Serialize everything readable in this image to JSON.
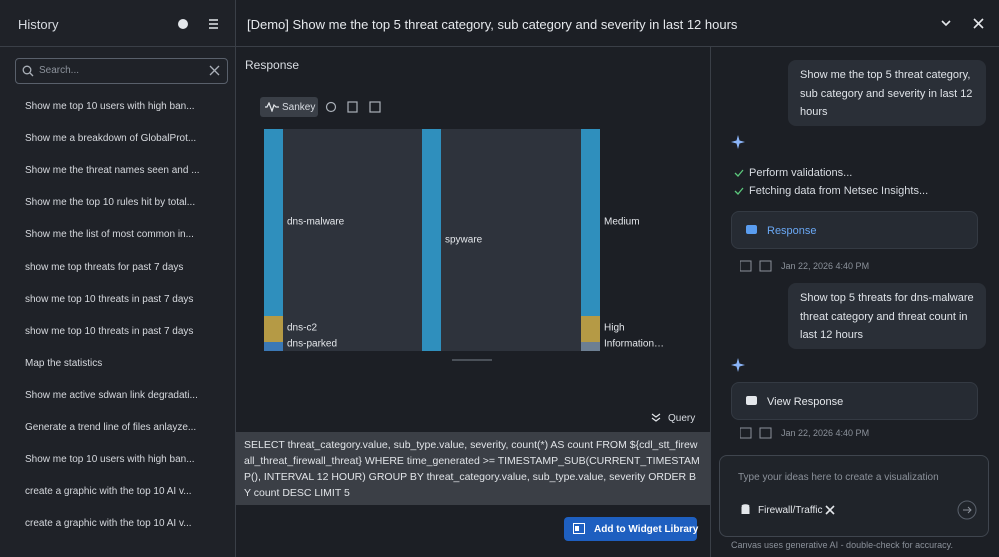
{
  "sidebar": {
    "title": "History",
    "search_placeholder": "Search...",
    "items": [
      "Show me top 10 users with high ban...",
      "Show me a breakdown of GlobalProt...",
      "Show me the threat names seen and ...",
      "Show me the top 10 rules hit by total...",
      "Show me the list of most common in...",
      "show me top threats for past 7 days",
      "show me top 10 threats in past 7 days",
      "show me top 10 threats in past 7 days",
      "Map the statistics",
      "Show me active sdwan link degradati...",
      "Generate a trend line of files anlayze...",
      "Show me top 10 users with high ban...",
      "create a graphic with the top 10 AI v...",
      "create a graphic with the top 10 AI v..."
    ]
  },
  "header": {
    "title": "[Demo] Show me the top 5 threat category, sub category and severity in last 12 hours"
  },
  "response": {
    "title": "Response",
    "tab": "Sankey",
    "sankey": {
      "left": [
        "dns-malware",
        "dns-c2",
        "dns-parked"
      ],
      "middle": [
        "spyware"
      ],
      "right": [
        "Medium",
        "High",
        "Information…"
      ]
    },
    "query_toggle": "Query",
    "sql": "SELECT threat_category.value, sub_type.value, severity, count(*) AS count FROM ${cdl_stt_firewall_threat_firewall_threat} WHERE time_generated >= TIMESTAMP_SUB(CURRENT_TIMESTAMP(), INTERVAL 12 HOUR) GROUP BY threat_category.value, sub_type.value, severity ORDER BY count DESC LIMIT 5",
    "button": "Add to Widget Library"
  },
  "chat": {
    "user_1": "Show me the top 5 threat category, sub category and severity in last 12 hours",
    "steps": [
      "Perform validations...",
      "Fetching data from Netsec Insights..."
    ],
    "response_1": "Response",
    "time_1": "Jan 22, 2026 4:40 PM",
    "user_2": "Show top 5 threats for dns-malware threat category and threat count in last 12 hours",
    "response_2": "View Response",
    "time_2": "Jan 22, 2026 4:40 PM",
    "input_placeholder": "Type your ideas here to create a visualization",
    "filter": "Firewall/Traffic",
    "disclaimer": "Canvas uses generative AI - double-check for accuracy."
  }
}
